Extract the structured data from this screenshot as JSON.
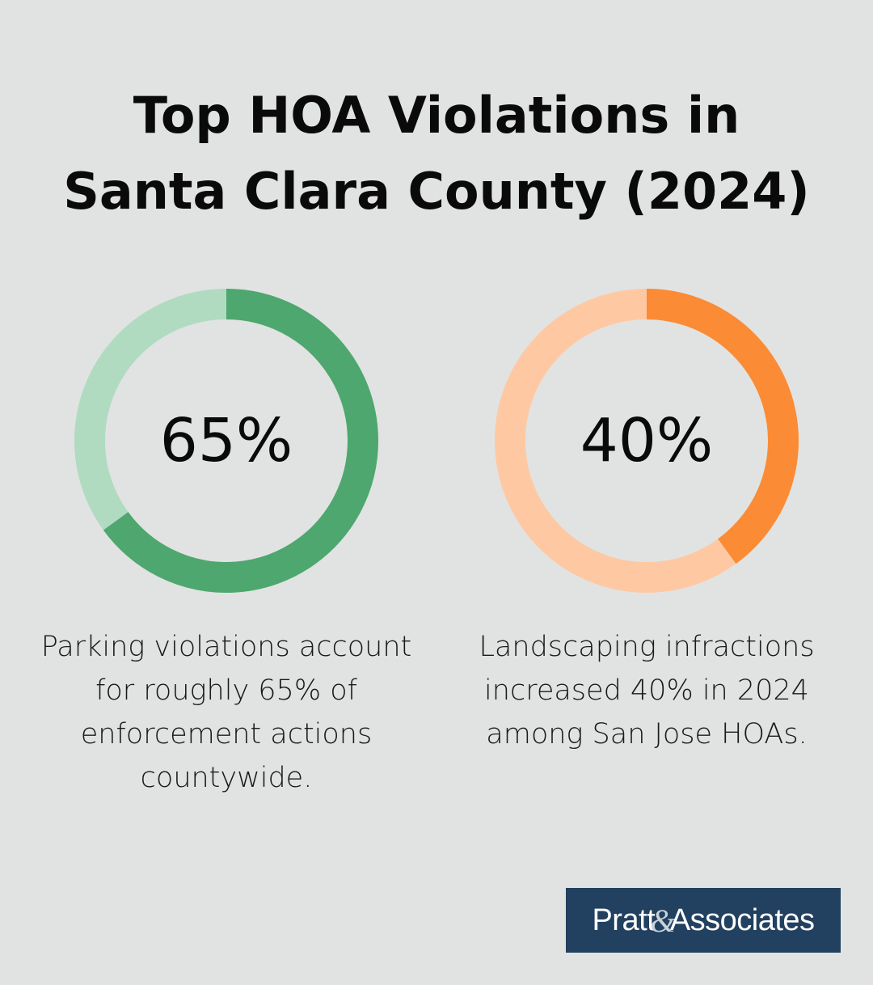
{
  "title": {
    "line1": "Top HOA Violations in",
    "line2": "Santa Clara County (2024)"
  },
  "colors": {
    "background": "#e1e3e2",
    "green_filled": "#4ea76e",
    "green_track": "#b0dbc1",
    "orange_filled": "#fb8b35",
    "orange_track": "#fec9a2",
    "logo_background": "#22405f"
  },
  "chart_data": [
    {
      "type": "donut",
      "value": 65,
      "max": 100,
      "label": "65%",
      "caption": "Parking violations account for roughly 65% of enforcement actions countywide.",
      "filled_color": "#4ea76e",
      "track_color": "#b0dbc1"
    },
    {
      "type": "donut",
      "value": 40,
      "max": 100,
      "label": "40%",
      "caption": "Landscaping infractions increased 40% in 2024 among San Jose HOAs.",
      "filled_color": "#fb8b35",
      "track_color": "#fec9a2"
    }
  ],
  "logo": {
    "part1": "Pratt",
    "amp": "&",
    "part2": "Associates"
  }
}
